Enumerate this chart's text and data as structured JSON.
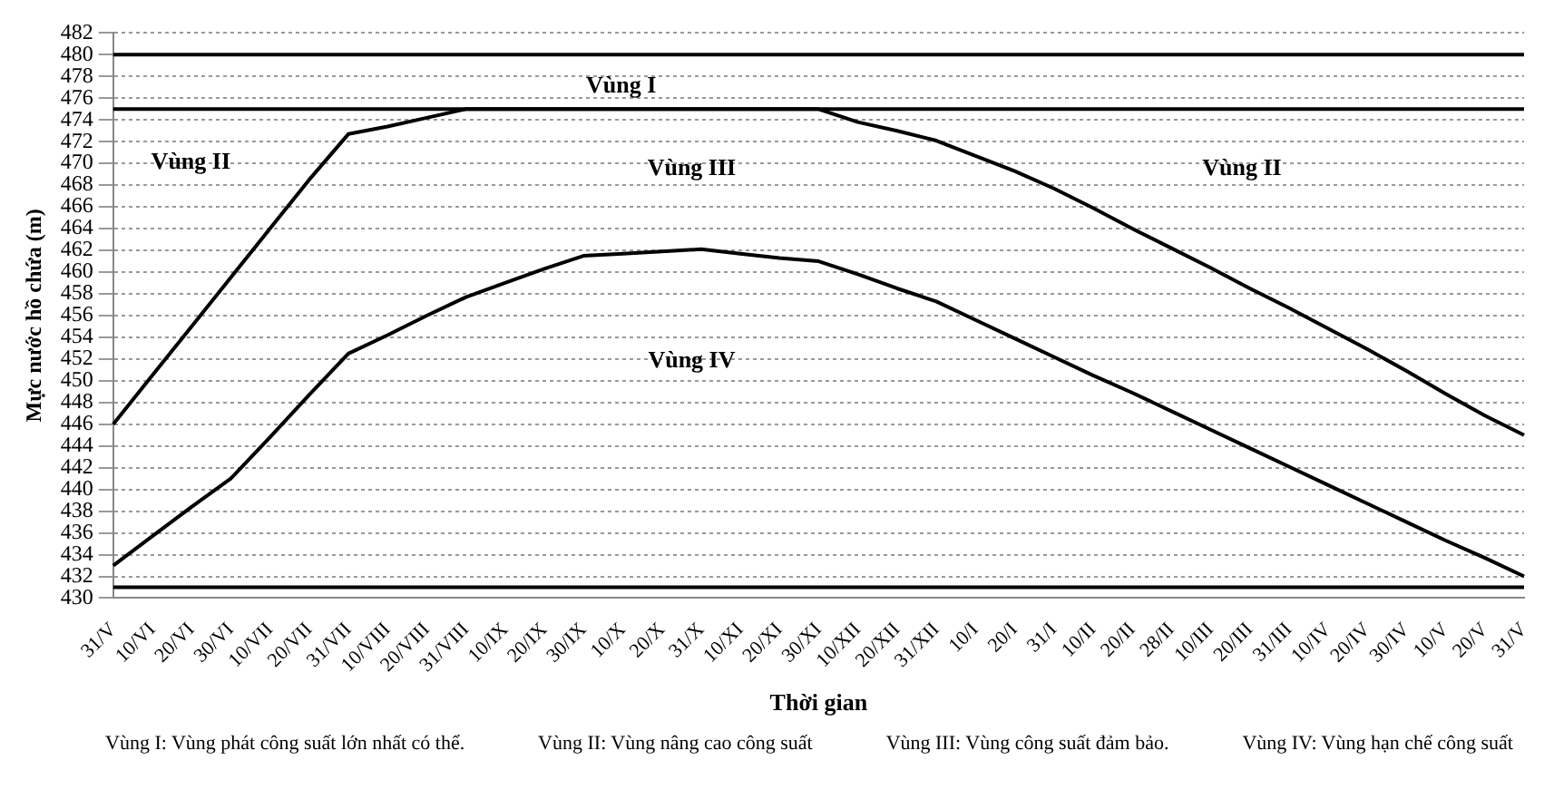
{
  "chart_data": {
    "type": "line",
    "xlabel": "Thời gian",
    "ylabel": "Mực nước hồ chứa (m)",
    "categories": [
      "31/V",
      "10/VI",
      "20/VI",
      "30/VI",
      "10/VII",
      "20/VII",
      "31/VII",
      "10/VIII",
      "20/VIII",
      "31/VIII",
      "10/IX",
      "20/IX",
      "30/IX",
      "10/X",
      "20/X",
      "31/X",
      "10/XI",
      "20/XI",
      "30/XI",
      "10/XII",
      "20/XII",
      "31/XII",
      "10/I",
      "20/I",
      "31/I",
      "10/II",
      "20/II",
      "28/II",
      "10/III",
      "20/III",
      "31/III",
      "10/IV",
      "20/IV",
      "30/IV",
      "10/V",
      "20/V",
      "31/V"
    ],
    "series": [
      {
        "color": "#000000",
        "values": [
          446,
          450.5,
          455,
          459.5,
          464,
          468.5,
          472.7,
          473.4,
          474.2,
          475,
          475,
          475,
          475,
          475,
          475,
          475,
          475,
          475,
          475,
          473.8,
          473,
          472.1,
          470.7,
          469.3,
          467.7,
          465.9,
          464,
          462.2,
          460.4,
          458.5,
          456.7,
          454.8,
          452.9,
          450.9,
          448.8,
          446.8,
          445
        ]
      },
      {
        "color": "#000000",
        "values": [
          433,
          435.7,
          438.4,
          441,
          444.8,
          448.7,
          452.5,
          454.2,
          456,
          457.7,
          459,
          460.3,
          461.5,
          461.7,
          461.9,
          462.1,
          461.7,
          461.3,
          461,
          459.8,
          458.5,
          457.3,
          455.6,
          453.9,
          452.2,
          450.5,
          448.9,
          447.2,
          445.5,
          443.8,
          442.1,
          440.4,
          438.7,
          437,
          435.3,
          433.7,
          432
        ]
      }
    ],
    "ref_lines": [
      {
        "axis": "y",
        "value": 480,
        "color": "#000000"
      },
      {
        "axis": "y",
        "value": 475,
        "color": "#000000"
      },
      {
        "axis": "y",
        "value": 431,
        "color": "#000000"
      }
    ],
    "annotations": [
      "Vùng I",
      "Vùng II",
      "Vùng III",
      "Vùng II",
      "Vùng IV",
      "Vùng I: Vùng phát công suất lớn nhất có thể.",
      "Vùng II: Vùng nâng cao công suất",
      "Vùng III: Vùng công suất đảm bảo.",
      "Vùng IV: Vùng hạn chế công suất"
    ],
    "ylim": [
      430,
      482
    ],
    "yticks": [
      430,
      432,
      434,
      436,
      438,
      440,
      442,
      444,
      446,
      448,
      450,
      452,
      454,
      456,
      458,
      460,
      462,
      464,
      466,
      468,
      470,
      472,
      474,
      476,
      478,
      480,
      482
    ],
    "grid": "y",
    "marker": "none",
    "line_style": "solid",
    "legend": false
  }
}
